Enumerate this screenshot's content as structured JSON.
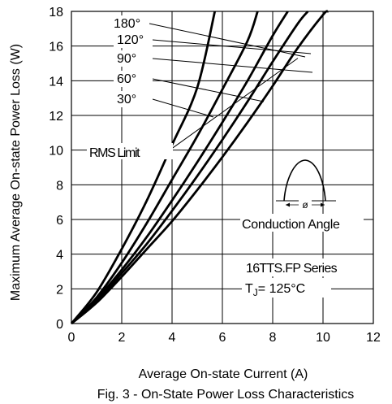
{
  "chart_data": {
    "type": "line",
    "caption": "Fig. 3 - On-State Power Loss Characteristics",
    "xlabel": "Average On-state Current (A)",
    "ylabel": "Maximum Average On-state Power Loss (W)",
    "xlim": [
      0,
      12
    ],
    "ylim": [
      0,
      18
    ],
    "xticks": [
      "0",
      "2",
      "4",
      "6",
      "8",
      "10",
      "12"
    ],
    "yticks": [
      "0",
      "2",
      "4",
      "6",
      "8",
      "10",
      "12",
      "14",
      "16",
      "18"
    ],
    "grid": true,
    "series": [
      {
        "name": "180°",
        "x": [
          0,
          1,
          2,
          3,
          4,
          5,
          6,
          7,
          8,
          9,
          10,
          10.2
        ],
        "y": [
          0,
          1.2,
          2.7,
          4.3,
          5.9,
          7.7,
          9.6,
          11.6,
          13.7,
          15.9,
          17.8,
          18
        ]
      },
      {
        "name": "120°",
        "x": [
          0,
          1,
          2,
          3,
          4,
          5,
          6,
          7,
          8,
          9,
          9.4
        ],
        "y": [
          0,
          1.3,
          2.9,
          4.6,
          6.5,
          8.5,
          10.6,
          12.8,
          15.1,
          17.3,
          18
        ]
      },
      {
        "name": "90°",
        "x": [
          0,
          1,
          2,
          3,
          4,
          5,
          6,
          7,
          8,
          8.6
        ],
        "y": [
          0,
          1.4,
          3.1,
          5.0,
          7.1,
          9.3,
          11.6,
          14.0,
          16.6,
          18
        ]
      },
      {
        "name": "60°",
        "x": [
          0,
          1,
          2,
          3,
          4,
          5,
          6,
          7,
          7.4
        ],
        "y": [
          0,
          1.5,
          3.5,
          5.8,
          8.3,
          10.8,
          13.5,
          16.3,
          18
        ]
      },
      {
        "name": "30°",
        "x": [
          0,
          1,
          2,
          3,
          4,
          5,
          5.7
        ],
        "y": [
          0,
          1.8,
          4.3,
          7.1,
          10.3,
          13.6,
          18
        ]
      }
    ],
    "rms_limit": {
      "label": "RMS Limit",
      "point": [
        4.0,
        10.1
      ],
      "end": [
        9.0,
        15.3
      ]
    },
    "legend_labels": [
      "180°",
      "120°",
      "90°",
      "60°",
      "30°"
    ],
    "inset": {
      "label": "Conduction Angle",
      "symbol": "ø"
    },
    "series_text": "16TTS.FP Series",
    "temp_text": "TJ = 125°C",
    "temp_prefix": "T",
    "temp_sub": "J",
    "temp_value": "= 125°C"
  }
}
